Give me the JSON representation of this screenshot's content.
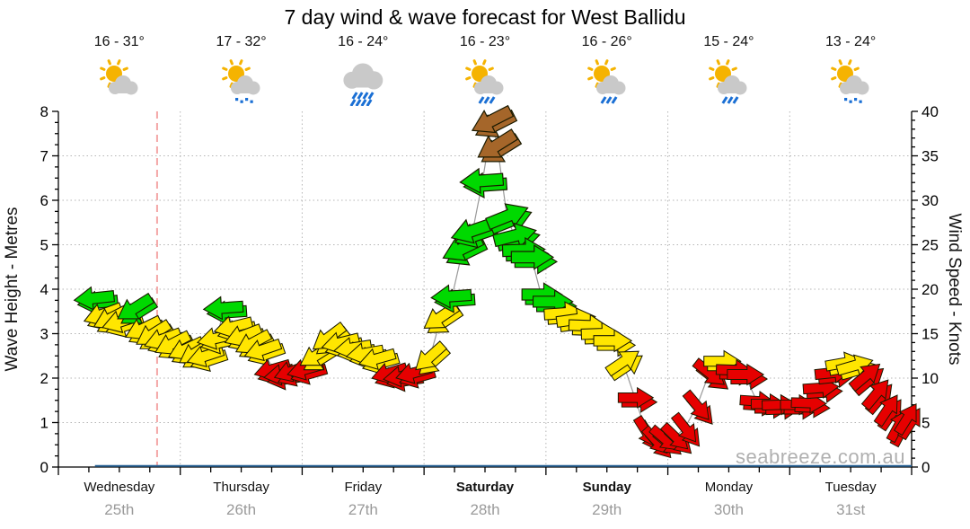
{
  "title": "7 day wind & wave forecast for West Ballidu",
  "watermark": "seabreeze.com.au",
  "days": [
    {
      "name": "Wednesday",
      "date": "25th",
      "temp": "16 - 31°",
      "icon": "sun-cloud",
      "bold": false
    },
    {
      "name": "Thursday",
      "date": "26th",
      "temp": "17 - 32°",
      "icon": "sun-cloud-drizzle",
      "bold": false
    },
    {
      "name": "Friday",
      "date": "27th",
      "temp": "16 - 24°",
      "icon": "cloud-rain",
      "bold": false
    },
    {
      "name": "Saturday",
      "date": "28th",
      "temp": "16 - 23°",
      "icon": "sun-cloud-rain",
      "bold": true
    },
    {
      "name": "Sunday",
      "date": "29th",
      "temp": "16 - 26°",
      "icon": "sun-cloud-rain",
      "bold": true
    },
    {
      "name": "Monday",
      "date": "30th",
      "temp": "15 - 24°",
      "icon": "sun-cloud-rain",
      "bold": false
    },
    {
      "name": "Tuesday",
      "date": "31st",
      "temp": "13 - 24°",
      "icon": "sun-cloud-drizzle",
      "bold": false
    }
  ],
  "chart_data": {
    "type": "line",
    "title": "7 day wind & wave forecast for West Ballidu",
    "y_left": {
      "label": "Wave Height - Metres",
      "min": 0,
      "max": 8,
      "major_step": 1,
      "minor_step": 0.25
    },
    "y_right": {
      "label": "Wind Speed - Knots",
      "min": 0,
      "max": 40,
      "major_step": 5,
      "minor_step": 1
    },
    "x": {
      "categories": [
        "Wednesday",
        "Thursday",
        "Friday",
        "Saturday",
        "Sunday",
        "Monday",
        "Tuesday"
      ],
      "dates": [
        "25th",
        "26th",
        "27th",
        "28th",
        "29th",
        "30th",
        "31st"
      ]
    },
    "grid": true,
    "legend": false,
    "now_marker": {
      "day": 0,
      "pos": 0.81,
      "color": "#f4a7a7"
    },
    "color_codes": {
      "r": "#e60000",
      "y": "#ffe600",
      "g": "#00d900",
      "b": "#a5662a"
    },
    "wind_series": {
      "name": "Wind Speed",
      "unit": "knots",
      "point_format": [
        "pos_in_day_0to1",
        "knots",
        "color_code",
        "arrow_dir_deg_0right_90up"
      ],
      "days": [
        [
          [
            0.3,
            19.0,
            "g",
            186
          ],
          [
            0.37,
            17.2,
            "y",
            200
          ],
          [
            0.44,
            16.8,
            "y",
            207
          ],
          [
            0.52,
            16.4,
            "y",
            198
          ],
          [
            0.63,
            17.9,
            "g",
            212
          ],
          [
            0.7,
            15.6,
            "y",
            206
          ],
          [
            0.78,
            15.0,
            "y",
            212
          ],
          [
            0.86,
            14.4,
            "y",
            200
          ],
          [
            0.94,
            13.9,
            "y",
            207
          ]
        ],
        [
          [
            0.05,
            13.3,
            "y",
            205
          ],
          [
            0.13,
            12.9,
            "y",
            212
          ],
          [
            0.21,
            12.5,
            "y",
            198
          ],
          [
            0.3,
            14.5,
            "y",
            193
          ],
          [
            0.36,
            17.9,
            "g",
            184
          ],
          [
            0.44,
            15.8,
            "y",
            194
          ],
          [
            0.52,
            14.8,
            "y",
            201
          ],
          [
            0.6,
            14.0,
            "y",
            208
          ],
          [
            0.68,
            13.2,
            "y",
            199
          ],
          [
            0.76,
            11.0,
            "r",
            196
          ],
          [
            0.84,
            10.4,
            "r",
            189
          ],
          [
            0.92,
            10.8,
            "r",
            200
          ]
        ],
        [
          [
            0.03,
            11.0,
            "r",
            196
          ],
          [
            0.12,
            12.6,
            "y",
            212
          ],
          [
            0.22,
            14.6,
            "y",
            217
          ],
          [
            0.32,
            14.0,
            "y",
            194
          ],
          [
            0.42,
            13.4,
            "y",
            189
          ],
          [
            0.52,
            12.8,
            "y",
            190
          ],
          [
            0.62,
            12.2,
            "y",
            196
          ],
          [
            0.72,
            10.6,
            "r",
            197
          ],
          [
            0.82,
            10.2,
            "r",
            189
          ],
          [
            0.92,
            10.6,
            "r",
            196
          ]
        ],
        [
          [
            0.05,
            12.4,
            "y",
            222
          ],
          [
            0.14,
            16.9,
            "y",
            214
          ],
          [
            0.23,
            19.2,
            "g",
            184
          ],
          [
            0.32,
            24.6,
            "g",
            206
          ],
          [
            0.4,
            26.6,
            "g",
            199
          ],
          [
            0.48,
            32.2,
            "g",
            184
          ],
          [
            0.56,
            39.0,
            "b",
            207
          ],
          [
            0.6,
            36.2,
            "b",
            212
          ],
          [
            0.68,
            28.2,
            "g",
            22
          ],
          [
            0.74,
            26.0,
            "g",
            14
          ],
          [
            0.81,
            24.4,
            "g",
            2
          ],
          [
            0.88,
            23.6,
            "g",
            0
          ],
          [
            0.96,
            19.4,
            "g",
            0
          ]
        ],
        [
          [
            0.05,
            18.6,
            "g",
            0
          ],
          [
            0.14,
            17.3,
            "y",
            4
          ],
          [
            0.24,
            16.6,
            "y",
            8
          ],
          [
            0.34,
            15.9,
            "y",
            358
          ],
          [
            0.44,
            15.0,
            "y",
            2
          ],
          [
            0.54,
            14.2,
            "y",
            0
          ],
          [
            0.63,
            11.8,
            "y",
            34
          ],
          [
            0.73,
            7.8,
            "r",
            0
          ],
          [
            0.82,
            4.0,
            "r",
            302
          ],
          [
            0.9,
            3.0,
            "r",
            312
          ],
          [
            0.97,
            3.2,
            "r",
            320
          ]
        ],
        [
          [
            0.06,
            3.4,
            "r",
            316
          ],
          [
            0.14,
            4.4,
            "r",
            308
          ],
          [
            0.24,
            6.9,
            "r",
            310
          ],
          [
            0.34,
            10.6,
            "r",
            322
          ],
          [
            0.44,
            11.9,
            "y",
            0
          ],
          [
            0.54,
            10.9,
            "r",
            358
          ],
          [
            0.63,
            10.4,
            "r",
            0
          ],
          [
            0.73,
            7.4,
            "r",
            356
          ],
          [
            0.82,
            7.1,
            "r",
            0
          ],
          [
            0.91,
            7.0,
            "r",
            2
          ]
        ],
        [
          [
            0.06,
            7.0,
            "r",
            0
          ],
          [
            0.15,
            7.2,
            "r",
            358
          ],
          [
            0.25,
            8.9,
            "r",
            4
          ],
          [
            0.35,
            10.6,
            "r",
            6
          ],
          [
            0.44,
            11.7,
            "y",
            10
          ],
          [
            0.53,
            11.4,
            "y",
            16
          ],
          [
            0.62,
            10.2,
            "r",
            40
          ],
          [
            0.71,
            8.2,
            "r",
            50
          ],
          [
            0.8,
            6.4,
            "r",
            56
          ],
          [
            0.89,
            4.6,
            "r",
            62
          ],
          [
            0.96,
            5.4,
            "r",
            58
          ]
        ]
      ]
    },
    "wave_series": {
      "name": "Wave Height",
      "unit": "metres",
      "flat_value": 0,
      "color": "#2a6496"
    }
  }
}
